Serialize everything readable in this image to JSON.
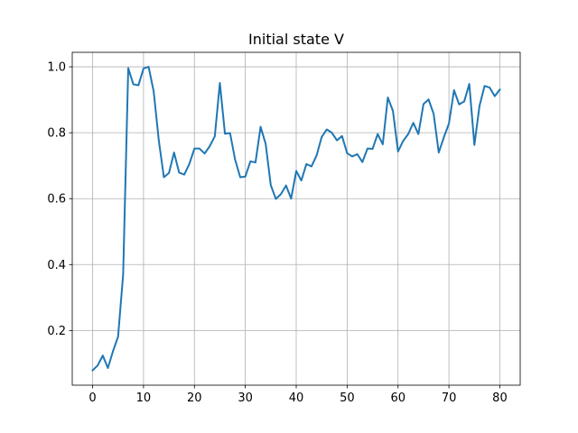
{
  "chart_data": {
    "type": "line",
    "title": "Initial state V",
    "xlabel": "",
    "ylabel": "",
    "xlim": [
      -4,
      84
    ],
    "ylim": [
      0.034,
      1.044
    ],
    "grid": true,
    "x_ticks": [
      0,
      10,
      20,
      30,
      40,
      50,
      60,
      70,
      80
    ],
    "y_ticks": [
      0.2,
      0.4,
      0.6,
      0.8,
      1.0
    ],
    "x_tick_labels": [
      "0",
      "10",
      "20",
      "30",
      "40",
      "50",
      "60",
      "70",
      "80"
    ],
    "y_tick_labels": [
      "0.2",
      "0.4",
      "0.6",
      "0.8",
      "1.0"
    ],
    "colors": {
      "line": "#1f77b4",
      "grid": "#b0b0b0",
      "axes": "#000000"
    },
    "x": [
      0,
      1,
      2,
      3,
      4,
      5,
      6,
      7,
      8,
      9,
      10,
      11,
      12,
      13,
      14,
      15,
      16,
      17,
      18,
      19,
      20,
      21,
      22,
      23,
      24,
      25,
      26,
      27,
      28,
      29,
      30,
      31,
      32,
      33,
      34,
      35,
      36,
      37,
      38,
      39,
      40,
      41,
      42,
      43,
      44,
      45,
      46,
      47,
      48,
      49,
      50,
      51,
      52,
      53,
      54,
      55,
      56,
      57,
      58,
      59,
      60,
      61,
      62,
      63,
      64,
      65,
      66,
      67,
      68,
      69,
      70,
      71,
      72,
      73,
      74,
      75,
      76,
      77,
      78,
      79,
      80
    ],
    "values": [
      0.079,
      0.094,
      0.124,
      0.086,
      0.137,
      0.181,
      0.37,
      0.996,
      0.947,
      0.944,
      0.995,
      1.0,
      0.925,
      0.777,
      0.665,
      0.678,
      0.74,
      0.679,
      0.673,
      0.705,
      0.752,
      0.752,
      0.737,
      0.759,
      0.789,
      0.951,
      0.797,
      0.799,
      0.718,
      0.665,
      0.667,
      0.713,
      0.71,
      0.818,
      0.766,
      0.641,
      0.599,
      0.614,
      0.64,
      0.6,
      0.684,
      0.655,
      0.705,
      0.698,
      0.731,
      0.787,
      0.81,
      0.8,
      0.777,
      0.79,
      0.738,
      0.728,
      0.735,
      0.711,
      0.752,
      0.751,
      0.796,
      0.765,
      0.907,
      0.866,
      0.743,
      0.775,
      0.796,
      0.83,
      0.796,
      0.887,
      0.901,
      0.857,
      0.74,
      0.786,
      0.828,
      0.929,
      0.886,
      0.895,
      0.948,
      0.763,
      0.881,
      0.942,
      0.937,
      0.911,
      0.931
    ]
  }
}
